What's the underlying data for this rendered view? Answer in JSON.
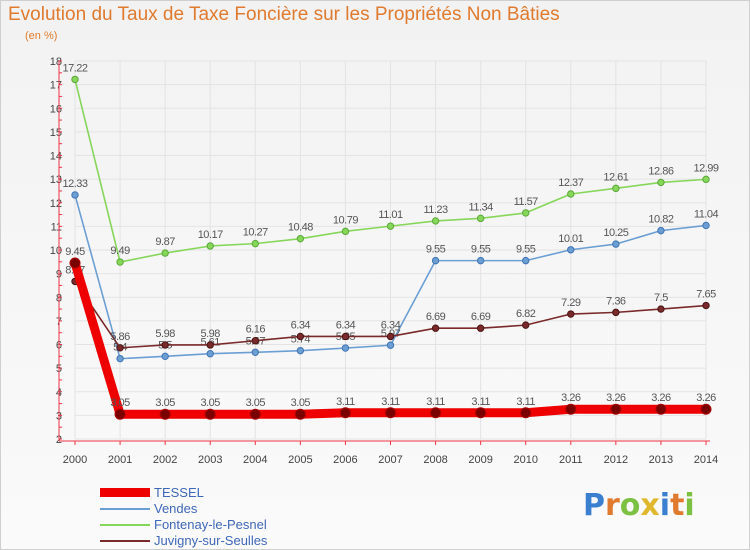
{
  "title": "Evolution du Taux de Taxe Foncière sur les Propriétés Non Bâties",
  "unit_label": "(en %)",
  "logo_text": "Proxiti",
  "chart_data": {
    "type": "line",
    "title": "Evolution du Taux de Taxe Foncière sur les Propriétés Non Bâties",
    "ylabel": "(en %)",
    "xlabel": "",
    "ylim": [
      2,
      18
    ],
    "yticks": [
      2,
      3,
      4,
      5,
      6,
      7,
      8,
      9,
      10,
      11,
      12,
      13,
      14,
      15,
      16,
      17,
      18
    ],
    "x": [
      "2000",
      "2001",
      "2002",
      "2003",
      "2004",
      "2005",
      "2006",
      "2007",
      "2008",
      "2009",
      "2010",
      "2011",
      "2012",
      "2013",
      "2014"
    ],
    "series": [
      {
        "name": "Fontenay-le-Pesnel",
        "color": "#86d65a",
        "values": [
          17.22,
          9.49,
          9.87,
          10.17,
          10.27,
          10.48,
          10.79,
          11.01,
          11.23,
          11.34,
          11.57,
          12.37,
          12.61,
          12.86,
          12.99
        ],
        "labels": [
          "17.22",
          "9.49",
          "9.87",
          "10.17",
          "10.27",
          "10.48",
          "10.79",
          "11.01",
          "11.23",
          "11.34",
          "11.57",
          "12.37",
          "12.61",
          "12.86",
          "12.99"
        ]
      },
      {
        "name": "Vendes",
        "color": "#6b9fd4",
        "values": [
          12.33,
          5.4,
          5.5,
          5.61,
          5.67,
          5.74,
          5.85,
          5.97,
          9.55,
          9.55,
          9.55,
          10.01,
          10.25,
          10.82,
          11.04
        ],
        "labels": [
          "12.33",
          "5.4",
          "5.5",
          "5.61",
          "5.67",
          "5.74",
          "5.85",
          "5.97",
          "9.55",
          "9.55",
          "9.55",
          "10.01",
          "10.25",
          "10.82",
          "11.04"
        ]
      },
      {
        "name": "Juvigny-sur-Seulles",
        "color": "#7a2a2a",
        "values": [
          8.67,
          5.86,
          5.98,
          5.98,
          6.16,
          6.34,
          6.34,
          6.34,
          6.69,
          6.69,
          6.82,
          7.29,
          7.36,
          7.5,
          7.65
        ],
        "labels": [
          "8.67",
          "5.86",
          "5.98",
          "5.98",
          "6.16",
          "6.34",
          "6.34",
          "6.34",
          "6.69",
          "6.69",
          "6.82",
          "7.29",
          "7.36",
          "7.5",
          "7.65"
        ]
      },
      {
        "name": "TESSEL",
        "color": "#ee0000",
        "values": [
          9.45,
          3.05,
          3.05,
          3.05,
          3.05,
          3.05,
          3.11,
          3.11,
          3.11,
          3.11,
          3.11,
          3.26,
          3.26,
          3.26,
          3.26
        ],
        "labels": [
          "9.45",
          "3.05",
          "3.05",
          "3.05",
          "3.05",
          "3.05",
          "3.11",
          "3.11",
          "3.11",
          "3.11",
          "3.11",
          "3.26",
          "3.26",
          "3.26",
          "3.26"
        ]
      }
    ],
    "legend": [
      {
        "name": "TESSEL",
        "color": "#ee0000"
      },
      {
        "name": "Vendes",
        "color": "#6b9fd4"
      },
      {
        "name": "Fontenay-le-Pesnel",
        "color": "#86d65a"
      },
      {
        "name": "Juvigny-sur-Seulles",
        "color": "#7a2a2a"
      }
    ],
    "legend_position": "bottom-left"
  }
}
